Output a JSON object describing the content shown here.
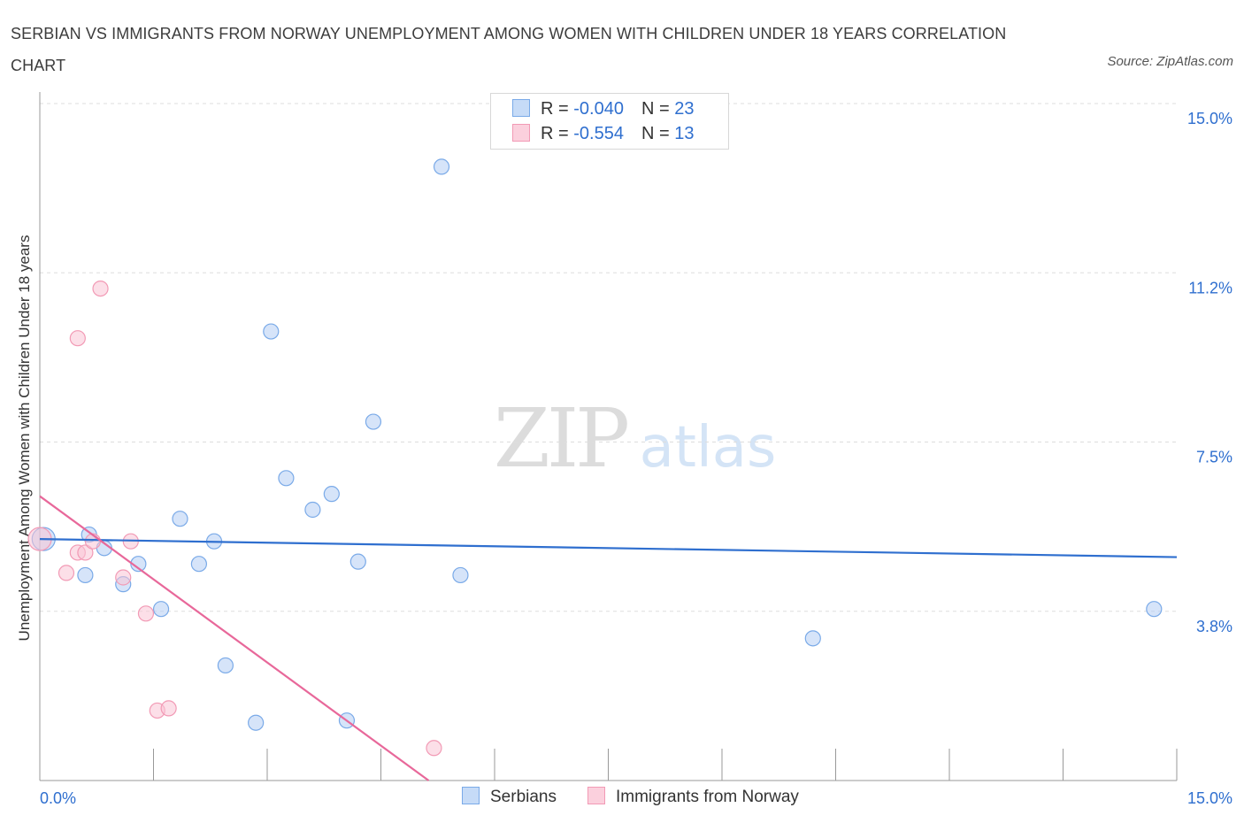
{
  "title": "SERBIAN VS IMMIGRANTS FROM NORWAY UNEMPLOYMENT AMONG WOMEN WITH CHILDREN UNDER 18 YEARS CORRELATION CHART",
  "source": "Source: ZipAtlas.com",
  "watermark": {
    "zip": "ZIP",
    "atlas": "atlas"
  },
  "legend": {
    "rows": [
      {
        "r_label": "R = ",
        "r_value": "-0.040",
        "n_label": "N = ",
        "n_value": "23"
      },
      {
        "r_label": "R = ",
        "r_value": "-0.554",
        "n_label": "N = ",
        "n_value": "13"
      }
    ]
  },
  "chart_data": {
    "type": "scatter",
    "title": "SERBIAN VS IMMIGRANTS FROM NORWAY UNEMPLOYMENT AMONG WOMEN WITH CHILDREN UNDER 18 YEARS CORRELATION CHART",
    "xlabel": "",
    "ylabel": "Unemployment Among Women with Children Under 18 years",
    "xlim": [
      0,
      15
    ],
    "ylim": [
      0,
      15
    ],
    "x_tick_labels": [
      "0.0%",
      "15.0%"
    ],
    "y_tick_labels": [
      "3.8%",
      "7.5%",
      "11.2%",
      "15.0%"
    ],
    "y_ticks": [
      3.75,
      7.5,
      11.25,
      15.0
    ],
    "grid": true,
    "colors": {
      "Serbians": "#7aaae8",
      "Immigrants from Norway": "#f29ab5",
      "Serbians_line": "#2f6fcf",
      "Immigrants from Norway_line": "#e8689a",
      "tick_text": "#2f6fcf"
    },
    "series": [
      {
        "name": "Serbians",
        "points": [
          [
            0.05,
            5.35
          ],
          [
            0.65,
            5.45
          ],
          [
            0.6,
            4.55
          ],
          [
            0.85,
            5.15
          ],
          [
            1.1,
            4.35
          ],
          [
            1.3,
            4.8
          ],
          [
            1.6,
            3.8
          ],
          [
            1.85,
            5.8
          ],
          [
            2.1,
            4.8
          ],
          [
            2.3,
            5.3
          ],
          [
            2.45,
            2.55
          ],
          [
            2.85,
            1.28
          ],
          [
            3.05,
            9.95
          ],
          [
            3.25,
            6.7
          ],
          [
            3.6,
            6.0
          ],
          [
            3.85,
            6.35
          ],
          [
            4.05,
            1.33
          ],
          [
            4.2,
            4.85
          ],
          [
            4.4,
            7.95
          ],
          [
            5.3,
            13.6
          ],
          [
            5.55,
            4.55
          ],
          [
            10.2,
            3.15
          ],
          [
            14.7,
            3.8
          ]
        ],
        "trend": {
          "x": [
            0,
            15
          ],
          "y": [
            5.35,
            4.95
          ]
        }
      },
      {
        "name": "Immigrants from Norway",
        "points": [
          [
            0.0,
            5.35
          ],
          [
            0.35,
            4.6
          ],
          [
            0.5,
            9.8
          ],
          [
            0.5,
            5.05
          ],
          [
            0.6,
            5.05
          ],
          [
            0.7,
            5.3
          ],
          [
            0.8,
            10.9
          ],
          [
            1.1,
            4.5
          ],
          [
            1.2,
            5.3
          ],
          [
            1.4,
            3.7
          ],
          [
            1.55,
            1.55
          ],
          [
            1.7,
            1.6
          ],
          [
            5.2,
            0.72
          ]
        ],
        "trend": {
          "x": [
            0,
            5.13
          ],
          "y": [
            6.3,
            0.0
          ]
        }
      }
    ]
  }
}
